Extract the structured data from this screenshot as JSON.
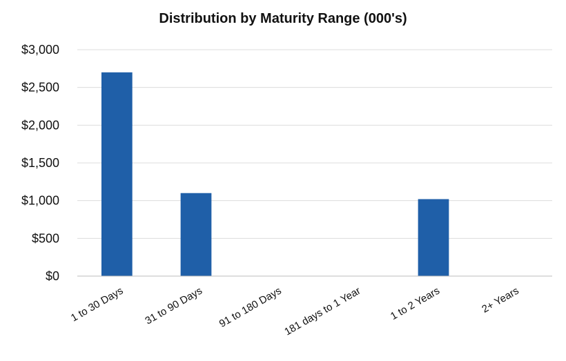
{
  "chart_data": {
    "type": "bar",
    "title": "Distribution by Maturity Range (000's)",
    "xlabel": "",
    "ylabel": "",
    "categories": [
      "1 to 30 Days",
      "31 to 90 Days",
      "91 to 180 Days",
      "181 days to 1 Year",
      "1 to 2 Years",
      "2+ Years"
    ],
    "values": [
      2700,
      1100,
      0,
      0,
      1020,
      0
    ],
    "ylim": [
      0,
      3000
    ],
    "yticks": [
      0,
      500,
      1000,
      1500,
      2000,
      2500,
      3000
    ],
    "ytick_labels": [
      "$0",
      "$500",
      "$1,000",
      "$1,500",
      "$2,000",
      "$2,500",
      "$3,000"
    ],
    "grid": true,
    "legend": "none",
    "bar_color": "#1f5fa8"
  }
}
